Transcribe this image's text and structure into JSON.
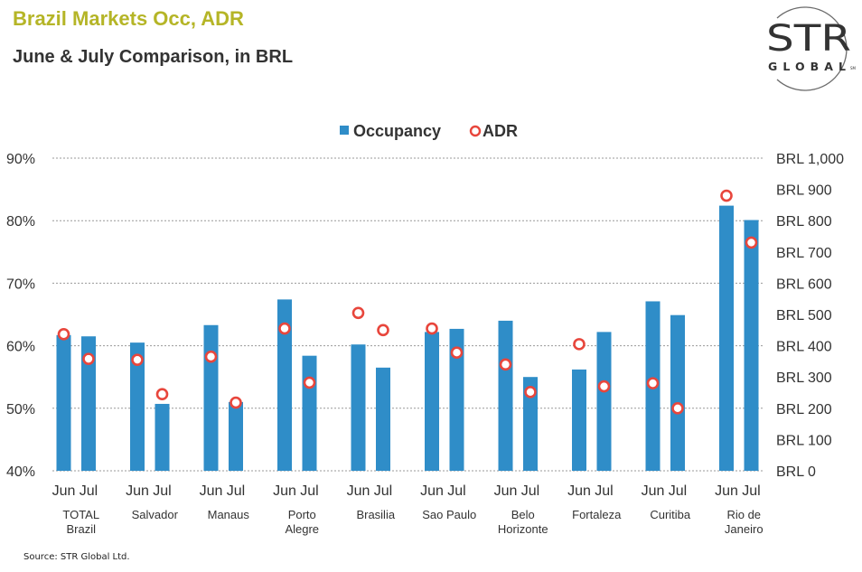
{
  "header": {
    "title": "Brazil Markets Occ, ADR",
    "subtitle": "June & July Comparison, in BRL"
  },
  "logo": {
    "text_main": "STR",
    "text_sub": "GLOBAL",
    "text_mark": "SM"
  },
  "footer": {
    "source": "Source: STR Global Ltd."
  },
  "colors": {
    "title": "#b5b527",
    "bar": "#2f8dc8",
    "marker": "#e8463c",
    "grid": "#999999",
    "text": "#333333"
  },
  "chart_data": {
    "type": "bar",
    "legend_position": "top-center",
    "grid": true,
    "markets": [
      "TOTAL\nBrazil",
      "Salvador",
      "Manaus",
      "Porto\nAlegre",
      "Brasilia",
      "Sao Paulo",
      "Belo\nHorizonte",
      "Fortaleza",
      "Curitiba",
      "Rio de\nJaneiro"
    ],
    "months": [
      "Jun",
      "Jul"
    ],
    "y_left": {
      "lim": [
        40,
        90
      ],
      "ticks": [
        90,
        80,
        70,
        60,
        50,
        40
      ],
      "tick_labels": [
        "90%",
        "80%",
        "70%",
        "60%",
        "50%",
        "40%"
      ]
    },
    "y_right": {
      "lim": [
        0,
        1000
      ],
      "ticks": [
        1000,
        900,
        800,
        700,
        600,
        500,
        400,
        300,
        200,
        100,
        0
      ],
      "tick_labels": [
        "BRL 1,000",
        "BRL 900",
        "BRL 800",
        "BRL 700",
        "BRL 600",
        "BRL 500",
        "BRL 400",
        "BRL 300",
        "BRL 200",
        "BRL 100",
        "BRL 0"
      ]
    },
    "series": [
      {
        "name": "Occupancy",
        "type": "bar",
        "axis": "left",
        "values": [
          [
            61.7,
            61.5
          ],
          [
            60.5,
            50.7
          ],
          [
            63.3,
            51.0
          ],
          [
            67.4,
            58.4
          ],
          [
            60.2,
            56.5
          ],
          [
            62.2,
            62.7
          ],
          [
            64.0,
            55.0
          ],
          [
            56.2,
            62.2
          ],
          [
            67.1,
            64.9
          ],
          [
            82.4,
            80.1
          ]
        ]
      },
      {
        "name": "ADR",
        "type": "marker",
        "axis": "right",
        "values": [
          [
            437,
            358
          ],
          [
            355,
            245
          ],
          [
            365,
            218
          ],
          [
            455,
            282
          ],
          [
            505,
            450
          ],
          [
            455,
            378
          ],
          [
            340,
            252
          ],
          [
            405,
            270
          ],
          [
            280,
            200
          ],
          [
            880,
            730
          ]
        ]
      }
    ]
  }
}
